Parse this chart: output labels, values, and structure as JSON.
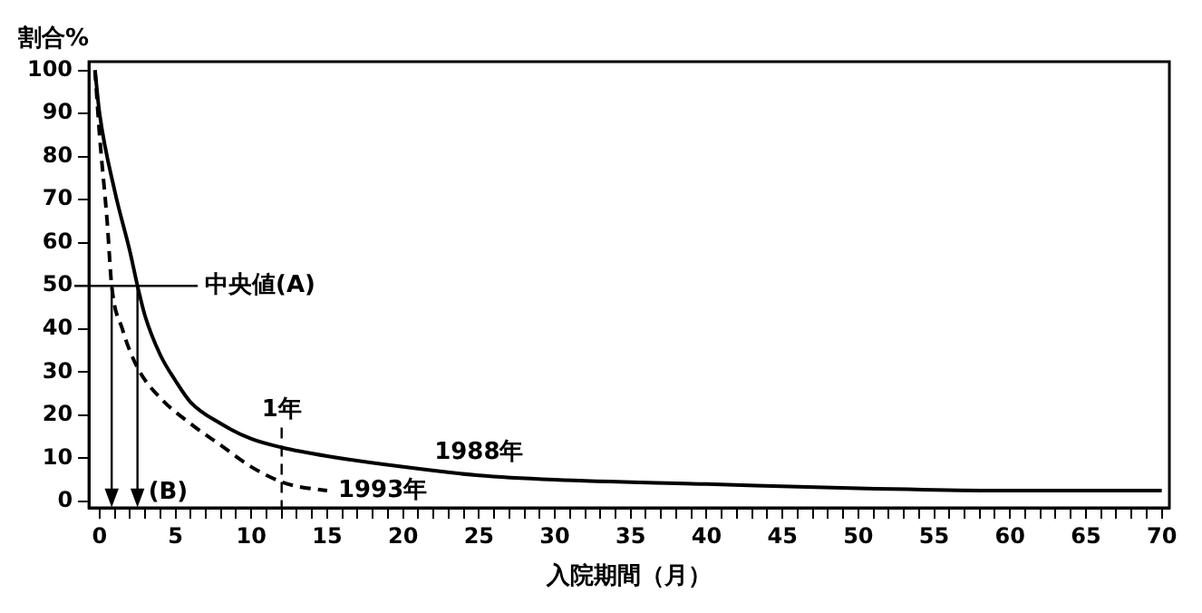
{
  "chart_data": {
    "type": "line",
    "xlabel": "入院期間（月）",
    "ylabel": "割合%",
    "xlim": [
      -0.7,
      70.5
    ],
    "ylim": [
      -1.5,
      102
    ],
    "xticks": [
      0,
      {
        "value": 1,
        "label": null
      },
      {
        "value": 2,
        "label": null
      },
      {
        "value": 3,
        "label": null
      },
      {
        "value": 4,
        "label": null
      },
      5,
      {
        "value": 6,
        "label": null
      },
      {
        "value": 7,
        "label": null
      },
      {
        "value": 8,
        "label": null
      },
      {
        "value": 9,
        "label": null
      },
      10,
      {
        "value": 11,
        "label": null
      },
      {
        "value": 12,
        "label": null
      },
      {
        "value": 13,
        "label": null
      },
      {
        "value": 14,
        "label": null
      },
      15,
      {
        "value": 16,
        "label": null
      },
      {
        "value": 17,
        "label": null
      },
      {
        "value": 18,
        "label": null
      },
      {
        "value": 19,
        "label": null
      },
      20,
      {
        "value": 21,
        "label": null
      },
      {
        "value": 22,
        "label": null
      },
      {
        "value": 23,
        "label": null
      },
      {
        "value": 24,
        "label": null
      },
      25,
      {
        "value": 26,
        "label": null
      },
      {
        "value": 27,
        "label": null
      },
      {
        "value": 28,
        "label": null
      },
      {
        "value": 29,
        "label": null
      },
      30,
      {
        "value": 31,
        "label": null
      },
      {
        "value": 32,
        "label": null
      },
      {
        "value": 33,
        "label": null
      },
      {
        "value": 34,
        "label": null
      },
      35,
      {
        "value": 36,
        "label": null
      },
      {
        "value": 37,
        "label": null
      },
      {
        "value": 38,
        "label": null
      },
      {
        "value": 39,
        "label": null
      },
      40,
      {
        "value": 41,
        "label": null
      },
      {
        "value": 42,
        "label": null
      },
      {
        "value": 43,
        "label": null
      },
      {
        "value": 44,
        "label": null
      },
      45,
      {
        "value": 46,
        "label": null
      },
      {
        "value": 47,
        "label": null
      },
      {
        "value": 48,
        "label": null
      },
      {
        "value": 49,
        "label": null
      },
      50,
      {
        "value": 51,
        "label": null
      },
      {
        "value": 52,
        "label": null
      },
      {
        "value": 53,
        "label": null
      },
      {
        "value": 54,
        "label": null
      },
      55,
      {
        "value": 56,
        "label": null
      },
      {
        "value": 57,
        "label": null
      },
      {
        "value": 58,
        "label": null
      },
      {
        "value": 59,
        "label": null
      },
      60,
      {
        "value": 61,
        "label": null
      },
      {
        "value": 62,
        "label": null
      },
      {
        "value": 63,
        "label": null
      },
      {
        "value": 64,
        "label": null
      },
      65,
      {
        "value": 66,
        "label": null
      },
      {
        "value": 67,
        "label": null
      },
      {
        "value": 68,
        "label": null
      },
      {
        "value": 69,
        "label": null
      },
      70
    ],
    "yticks": [
      0,
      10,
      20,
      30,
      40,
      50,
      60,
      70,
      80,
      90,
      100
    ],
    "grid": false,
    "legend": false,
    "marker": "none",
    "series": [
      {
        "name": "1988年",
        "color": "#000000",
        "line_style": "solid",
        "x": [
          -0.3,
          0,
          1,
          2,
          2.5,
          3,
          4,
          5,
          6,
          8,
          10,
          12,
          15,
          20,
          25,
          30,
          40,
          50,
          60,
          70
        ],
        "values": [
          100,
          90,
          72,
          58,
          50,
          43,
          34,
          28,
          23,
          18,
          14.5,
          12.5,
          10.5,
          8,
          6,
          5,
          4,
          3,
          2.5,
          2.5
        ]
      },
      {
        "name": "1993年",
        "color": "#000000",
        "line_style": "dashed",
        "x": [
          -0.3,
          0,
          0.5,
          0.8,
          1.5,
          2.5,
          4,
          6,
          8,
          10,
          12,
          13,
          15
        ],
        "values": [
          100,
          85,
          65,
          50,
          40,
          31,
          24,
          18,
          13,
          8,
          4.5,
          3.5,
          2.5
        ]
      }
    ],
    "ref_lines": [
      {
        "axis": "y",
        "value": 50,
        "label": "中央値(A)",
        "line_style": "solid"
      },
      {
        "axis": "x",
        "value": 0.8,
        "label": null,
        "line_style": "solid"
      },
      {
        "axis": "x",
        "value": 2.5,
        "label": "(B)",
        "line_style": "solid"
      },
      {
        "axis": "x",
        "value": 12,
        "label": "1年",
        "line_style": "dashed"
      }
    ]
  }
}
